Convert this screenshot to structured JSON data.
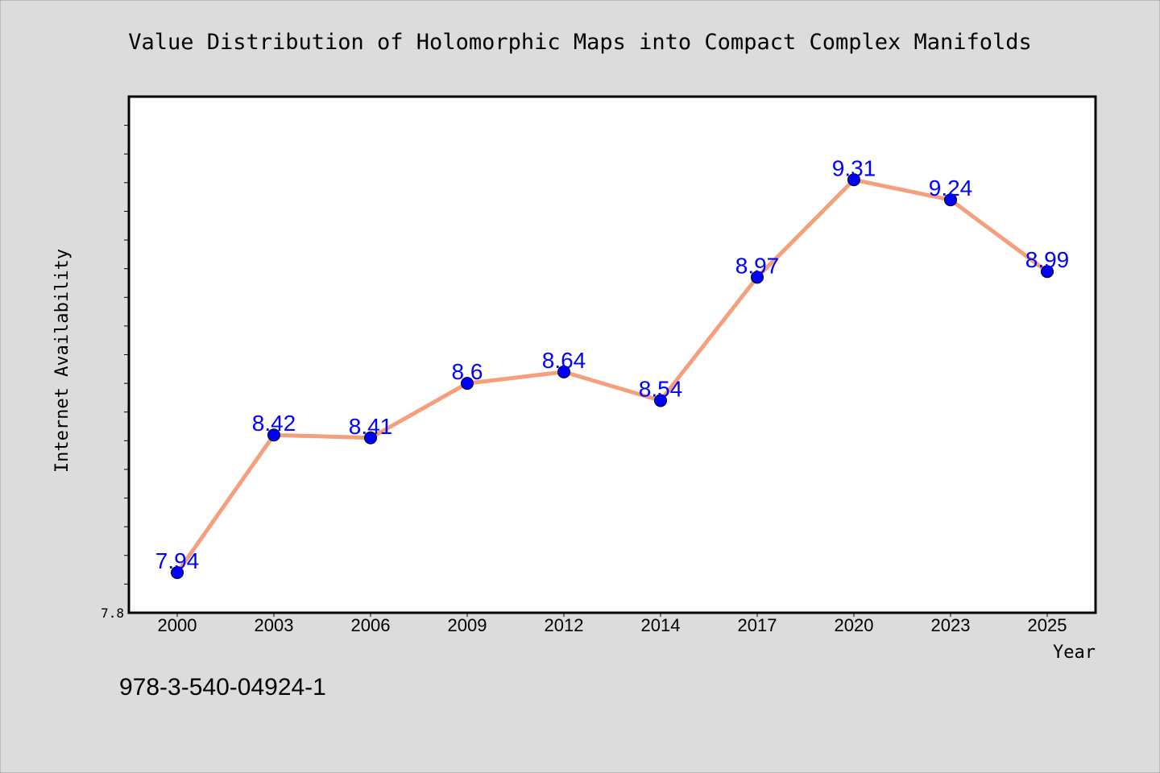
{
  "chart_data": {
    "type": "line",
    "title": "Value Distribution of Holomorphic Maps into Compact Complex Manifolds",
    "xlabel": "Year",
    "ylabel": "Internet Availability",
    "categories": [
      "2000",
      "2003",
      "2006",
      "2009",
      "2012",
      "2014",
      "2017",
      "2020",
      "2023",
      "2025"
    ],
    "series": [
      {
        "values": [
          7.94,
          8.42,
          8.41,
          8.6,
          8.64,
          8.54,
          8.97,
          9.31,
          9.24,
          8.99
        ],
        "labels": [
          "7.94",
          "8.42",
          "8.41",
          "8.6",
          "8.64",
          "8.54",
          "8.97",
          "9.31",
          "9.24",
          "8.99"
        ]
      }
    ],
    "ylim": [
      7.8,
      9.6
    ],
    "yticks": [
      7.8
    ],
    "ytick_labels": [
      "7.8"
    ],
    "y_minor_step": 0.1,
    "grid": false,
    "colors": {
      "line": "#f4a07e",
      "marker": "#0000ff",
      "data_label": "#0000ff",
      "background": "#dcdcdc",
      "plot_background": "#ffffff"
    }
  },
  "footer": {
    "text": "978-3-540-04924-1"
  }
}
